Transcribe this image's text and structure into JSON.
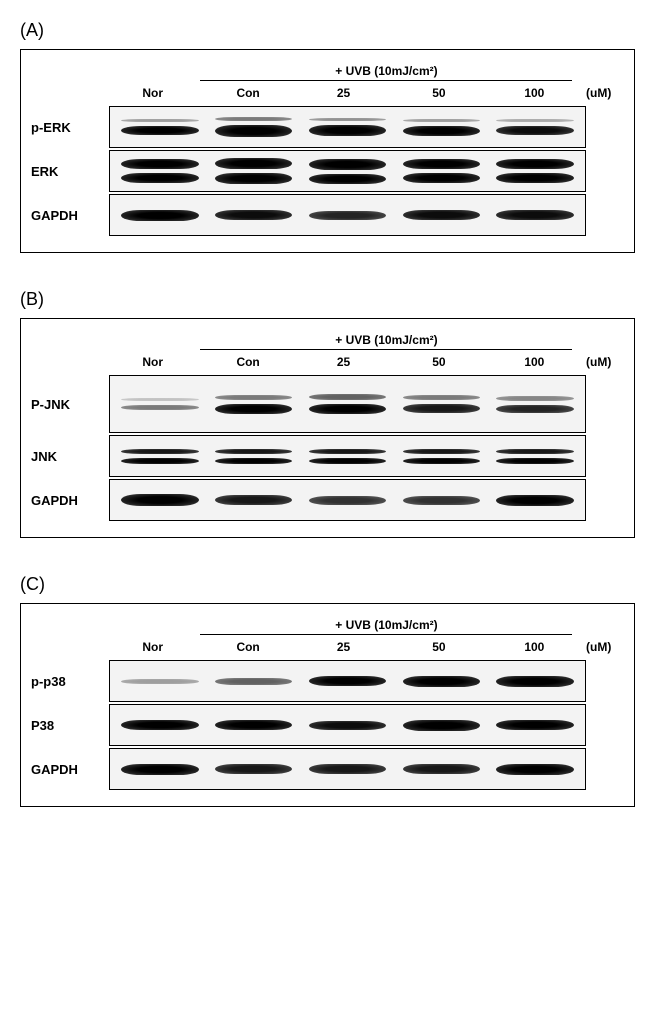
{
  "figure": {
    "uvb_label": "+ UVB (10mJ/cm²)",
    "lane_labels": [
      "Nor",
      "Con",
      "25",
      "50",
      "100"
    ],
    "unit": "(uM)",
    "colors": {
      "background": "#ffffff",
      "border": "#000000",
      "blot_bg": "#f3f3f3",
      "band_dark": "#000000"
    },
    "panels": [
      {
        "id": "A",
        "label": "(A)",
        "rows": [
          {
            "label": "p-ERK",
            "tall": false,
            "lanes": [
              {
                "bands": [
                  {
                    "h": 3,
                    "op": 0.35
                  },
                  {
                    "h": 9,
                    "op": 1.0
                  }
                ]
              },
              {
                "bands": [
                  {
                    "h": 4,
                    "op": 0.5
                  },
                  {
                    "h": 12,
                    "op": 1.0
                  }
                ]
              },
              {
                "bands": [
                  {
                    "h": 3,
                    "op": 0.4
                  },
                  {
                    "h": 11,
                    "op": 1.0
                  }
                ]
              },
              {
                "bands": [
                  {
                    "h": 3,
                    "op": 0.35
                  },
                  {
                    "h": 10,
                    "op": 1.0
                  }
                ]
              },
              {
                "bands": [
                  {
                    "h": 3,
                    "op": 0.3
                  },
                  {
                    "h": 9,
                    "op": 0.95
                  }
                ]
              }
            ]
          },
          {
            "label": "ERK",
            "tall": false,
            "lanes": [
              {
                "bands": [
                  {
                    "h": 10,
                    "op": 1.0
                  },
                  {
                    "h": 10,
                    "op": 1.0
                  }
                ]
              },
              {
                "bands": [
                  {
                    "h": 11,
                    "op": 1.0
                  },
                  {
                    "h": 11,
                    "op": 1.0
                  }
                ]
              },
              {
                "bands": [
                  {
                    "h": 11,
                    "op": 1.0
                  },
                  {
                    "h": 10,
                    "op": 1.0
                  }
                ]
              },
              {
                "bands": [
                  {
                    "h": 10,
                    "op": 1.0
                  },
                  {
                    "h": 10,
                    "op": 1.0
                  }
                ]
              },
              {
                "bands": [
                  {
                    "h": 10,
                    "op": 1.0
                  },
                  {
                    "h": 10,
                    "op": 1.0
                  }
                ]
              }
            ]
          },
          {
            "label": "GAPDH",
            "tall": false,
            "lanes": [
              {
                "bands": [
                  {
                    "h": 11,
                    "op": 1.0
                  }
                ]
              },
              {
                "bands": [
                  {
                    "h": 10,
                    "op": 0.95
                  }
                ]
              },
              {
                "bands": [
                  {
                    "h": 9,
                    "op": 0.85
                  }
                ]
              },
              {
                "bands": [
                  {
                    "h": 10,
                    "op": 0.95
                  }
                ]
              },
              {
                "bands": [
                  {
                    "h": 10,
                    "op": 0.95
                  }
                ]
              }
            ]
          }
        ]
      },
      {
        "id": "B",
        "label": "(B)",
        "rows": [
          {
            "label": "P-JNK",
            "tall": true,
            "lanes": [
              {
                "bands": [
                  {
                    "h": 3,
                    "op": 0.2
                  },
                  {
                    "h": 5,
                    "op": 0.5
                  }
                ]
              },
              {
                "bands": [
                  {
                    "h": 5,
                    "op": 0.5
                  },
                  {
                    "h": 10,
                    "op": 1.0
                  }
                ]
              },
              {
                "bands": [
                  {
                    "h": 6,
                    "op": 0.6
                  },
                  {
                    "h": 10,
                    "op": 1.0
                  }
                ]
              },
              {
                "bands": [
                  {
                    "h": 5,
                    "op": 0.5
                  },
                  {
                    "h": 9,
                    "op": 0.9
                  }
                ]
              },
              {
                "bands": [
                  {
                    "h": 5,
                    "op": 0.45
                  },
                  {
                    "h": 8,
                    "op": 0.85
                  }
                ]
              }
            ]
          },
          {
            "label": "JNK",
            "tall": false,
            "lanes": [
              {
                "bands": [
                  {
                    "h": 5,
                    "op": 0.9
                  },
                  {
                    "h": 6,
                    "op": 1.0
                  }
                ]
              },
              {
                "bands": [
                  {
                    "h": 5,
                    "op": 0.9
                  },
                  {
                    "h": 6,
                    "op": 1.0
                  }
                ]
              },
              {
                "bands": [
                  {
                    "h": 5,
                    "op": 0.9
                  },
                  {
                    "h": 6,
                    "op": 1.0
                  }
                ]
              },
              {
                "bands": [
                  {
                    "h": 5,
                    "op": 0.9
                  },
                  {
                    "h": 6,
                    "op": 1.0
                  }
                ]
              },
              {
                "bands": [
                  {
                    "h": 5,
                    "op": 0.9
                  },
                  {
                    "h": 6,
                    "op": 1.0
                  }
                ]
              }
            ]
          },
          {
            "label": "GAPDH",
            "tall": false,
            "lanes": [
              {
                "bands": [
                  {
                    "h": 12,
                    "op": 1.0
                  }
                ]
              },
              {
                "bands": [
                  {
                    "h": 10,
                    "op": 0.9
                  }
                ]
              },
              {
                "bands": [
                  {
                    "h": 9,
                    "op": 0.8
                  }
                ]
              },
              {
                "bands": [
                  {
                    "h": 9,
                    "op": 0.8
                  }
                ]
              },
              {
                "bands": [
                  {
                    "h": 11,
                    "op": 1.0
                  }
                ]
              }
            ]
          }
        ]
      },
      {
        "id": "C",
        "label": "(C)",
        "rows": [
          {
            "label": "p-p38",
            "tall": false,
            "lanes": [
              {
                "bands": [
                  {
                    "h": 5,
                    "op": 0.35
                  }
                ]
              },
              {
                "bands": [
                  {
                    "h": 7,
                    "op": 0.6
                  }
                ]
              },
              {
                "bands": [
                  {
                    "h": 10,
                    "op": 1.0
                  }
                ]
              },
              {
                "bands": [
                  {
                    "h": 11,
                    "op": 1.0
                  }
                ]
              },
              {
                "bands": [
                  {
                    "h": 11,
                    "op": 1.0
                  }
                ]
              }
            ]
          },
          {
            "label": "P38",
            "tall": false,
            "lanes": [
              {
                "bands": [
                  {
                    "h": 10,
                    "op": 1.0
                  }
                ]
              },
              {
                "bands": [
                  {
                    "h": 10,
                    "op": 1.0
                  }
                ]
              },
              {
                "bands": [
                  {
                    "h": 9,
                    "op": 0.95
                  }
                ]
              },
              {
                "bands": [
                  {
                    "h": 11,
                    "op": 1.0
                  }
                ]
              },
              {
                "bands": [
                  {
                    "h": 10,
                    "op": 1.0
                  }
                ]
              }
            ]
          },
          {
            "label": "GAPDH",
            "tall": false,
            "lanes": [
              {
                "bands": [
                  {
                    "h": 11,
                    "op": 1.0
                  }
                ]
              },
              {
                "bands": [
                  {
                    "h": 10,
                    "op": 0.9
                  }
                ]
              },
              {
                "bands": [
                  {
                    "h": 10,
                    "op": 0.9
                  }
                ]
              },
              {
                "bands": [
                  {
                    "h": 10,
                    "op": 0.9
                  }
                ]
              },
              {
                "bands": [
                  {
                    "h": 11,
                    "op": 1.0
                  }
                ]
              }
            ]
          }
        ]
      }
    ]
  }
}
